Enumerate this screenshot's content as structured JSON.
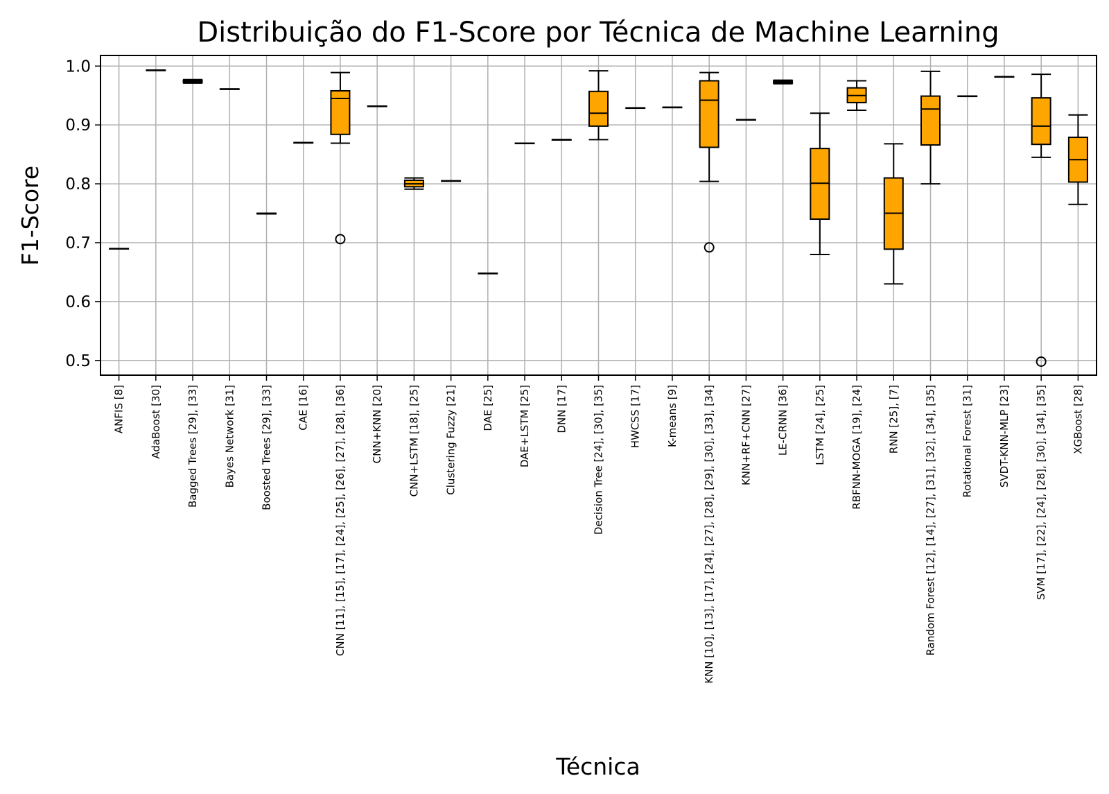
{
  "chart_data": {
    "type": "box",
    "title": "Distribuição do F1-Score por Técnica de Machine Learning",
    "xlabel": "Técnica",
    "ylabel": "F1-Score",
    "ylim": [
      0.475,
      1.018
    ],
    "yticks": [
      "0.5",
      "0.6",
      "0.7",
      "0.8",
      "0.9",
      "1.0"
    ],
    "grid": true,
    "colors": {
      "box_fill": "#FFA500",
      "line": "#000000",
      "grid": "#b0b0b0"
    },
    "categories": [
      "ANFIS [8]",
      "AdaBoost [30]",
      "Bagged Trees [29], [33]",
      "Bayes Network [31]",
      "Boosted Trees [29], [33]",
      "CAE [16]",
      "CNN [11], [15], [17], [24], [25], [26], [27], [28], [36]",
      "CNN+KNN [20]",
      "CNN+LSTM [18], [25]",
      "Clustering Fuzzy [21]",
      "DAE [25]",
      "DAE+LSTM [25]",
      "DNN [17]",
      "Decision Tree [24], [30], [35]",
      "HWCSS [17]",
      "K-means [9]",
      "KNN [10], [13], [17], [24], [27], [28], [29], [30], [33], [34]",
      "KNN+RF+CNN [27]",
      "LE-CRNN [36]",
      "LSTM [24], [25]",
      "RBFNN-MOGA [19], [24]",
      "RNN [25], [7]",
      "Random Forest [12], [14], [27], [31], [32], [34], [35]",
      "Rotational Forest [31]",
      "SVDT-KNN-MLP [23]",
      "SVM [17], [22], [24], [28], [30], [34], [35]",
      "XGBoost [28]"
    ],
    "boxes": [
      {
        "whislo": 0.69,
        "q1": 0.69,
        "med": 0.69,
        "q3": 0.69,
        "whishi": 0.69,
        "fliers": []
      },
      {
        "whislo": 0.993,
        "q1": 0.993,
        "med": 0.993,
        "q3": 0.993,
        "whishi": 0.993,
        "fliers": []
      },
      {
        "whislo": 0.971,
        "q1": 0.972,
        "med": 0.974,
        "q3": 0.976,
        "whishi": 0.977,
        "fliers": []
      },
      {
        "whislo": 0.961,
        "q1": 0.961,
        "med": 0.961,
        "q3": 0.961,
        "whishi": 0.961,
        "fliers": []
      },
      {
        "whislo": 0.749,
        "q1": 0.749,
        "med": 0.75,
        "q3": 0.75,
        "whishi": 0.75,
        "fliers": []
      },
      {
        "whislo": 0.87,
        "q1": 0.87,
        "med": 0.87,
        "q3": 0.87,
        "whishi": 0.87,
        "fliers": []
      },
      {
        "whislo": 0.869,
        "q1": 0.884,
        "med": 0.945,
        "q3": 0.958,
        "whishi": 0.989,
        "fliers": [
          0.706
        ]
      },
      {
        "whislo": 0.932,
        "q1": 0.932,
        "med": 0.932,
        "q3": 0.932,
        "whishi": 0.932,
        "fliers": []
      },
      {
        "whislo": 0.791,
        "q1": 0.795,
        "med": 0.8,
        "q3": 0.806,
        "whishi": 0.81,
        "fliers": []
      },
      {
        "whislo": 0.805,
        "q1": 0.805,
        "med": 0.805,
        "q3": 0.805,
        "whishi": 0.805,
        "fliers": []
      },
      {
        "whislo": 0.648,
        "q1": 0.648,
        "med": 0.648,
        "q3": 0.648,
        "whishi": 0.648,
        "fliers": []
      },
      {
        "whislo": 0.869,
        "q1": 0.869,
        "med": 0.869,
        "q3": 0.869,
        "whishi": 0.869,
        "fliers": []
      },
      {
        "whislo": 0.875,
        "q1": 0.875,
        "med": 0.875,
        "q3": 0.875,
        "whishi": 0.875,
        "fliers": []
      },
      {
        "whislo": 0.875,
        "q1": 0.898,
        "med": 0.92,
        "q3": 0.957,
        "whishi": 0.992,
        "fliers": []
      },
      {
        "whislo": 0.929,
        "q1": 0.929,
        "med": 0.929,
        "q3": 0.929,
        "whishi": 0.929,
        "fliers": []
      },
      {
        "whislo": 0.93,
        "q1": 0.93,
        "med": 0.93,
        "q3": 0.93,
        "whishi": 0.93,
        "fliers": []
      },
      {
        "whislo": 0.804,
        "q1": 0.862,
        "med": 0.942,
        "q3": 0.975,
        "whishi": 0.989,
        "fliers": [
          0.692
        ]
      },
      {
        "whislo": 0.909,
        "q1": 0.909,
        "med": 0.909,
        "q3": 0.909,
        "whishi": 0.909,
        "fliers": []
      },
      {
        "whislo": 0.97,
        "q1": 0.971,
        "med": 0.973,
        "q3": 0.975,
        "whishi": 0.976,
        "fliers": []
      },
      {
        "whislo": 0.68,
        "q1": 0.74,
        "med": 0.801,
        "q3": 0.86,
        "whishi": 0.92,
        "fliers": []
      },
      {
        "whislo": 0.925,
        "q1": 0.938,
        "med": 0.95,
        "q3": 0.963,
        "whishi": 0.975,
        "fliers": []
      },
      {
        "whislo": 0.63,
        "q1": 0.689,
        "med": 0.75,
        "q3": 0.81,
        "whishi": 0.868,
        "fliers": []
      },
      {
        "whislo": 0.8,
        "q1": 0.866,
        "med": 0.927,
        "q3": 0.949,
        "whishi": 0.991,
        "fliers": []
      },
      {
        "whislo": 0.949,
        "q1": 0.949,
        "med": 0.949,
        "q3": 0.949,
        "whishi": 0.949,
        "fliers": []
      },
      {
        "whislo": 0.982,
        "q1": 0.982,
        "med": 0.982,
        "q3": 0.982,
        "whishi": 0.982,
        "fliers": []
      },
      {
        "whislo": 0.845,
        "q1": 0.867,
        "med": 0.898,
        "q3": 0.946,
        "whishi": 0.986,
        "fliers": [
          0.498
        ]
      },
      {
        "whislo": 0.765,
        "q1": 0.803,
        "med": 0.841,
        "q3": 0.879,
        "whishi": 0.917,
        "fliers": []
      }
    ]
  }
}
